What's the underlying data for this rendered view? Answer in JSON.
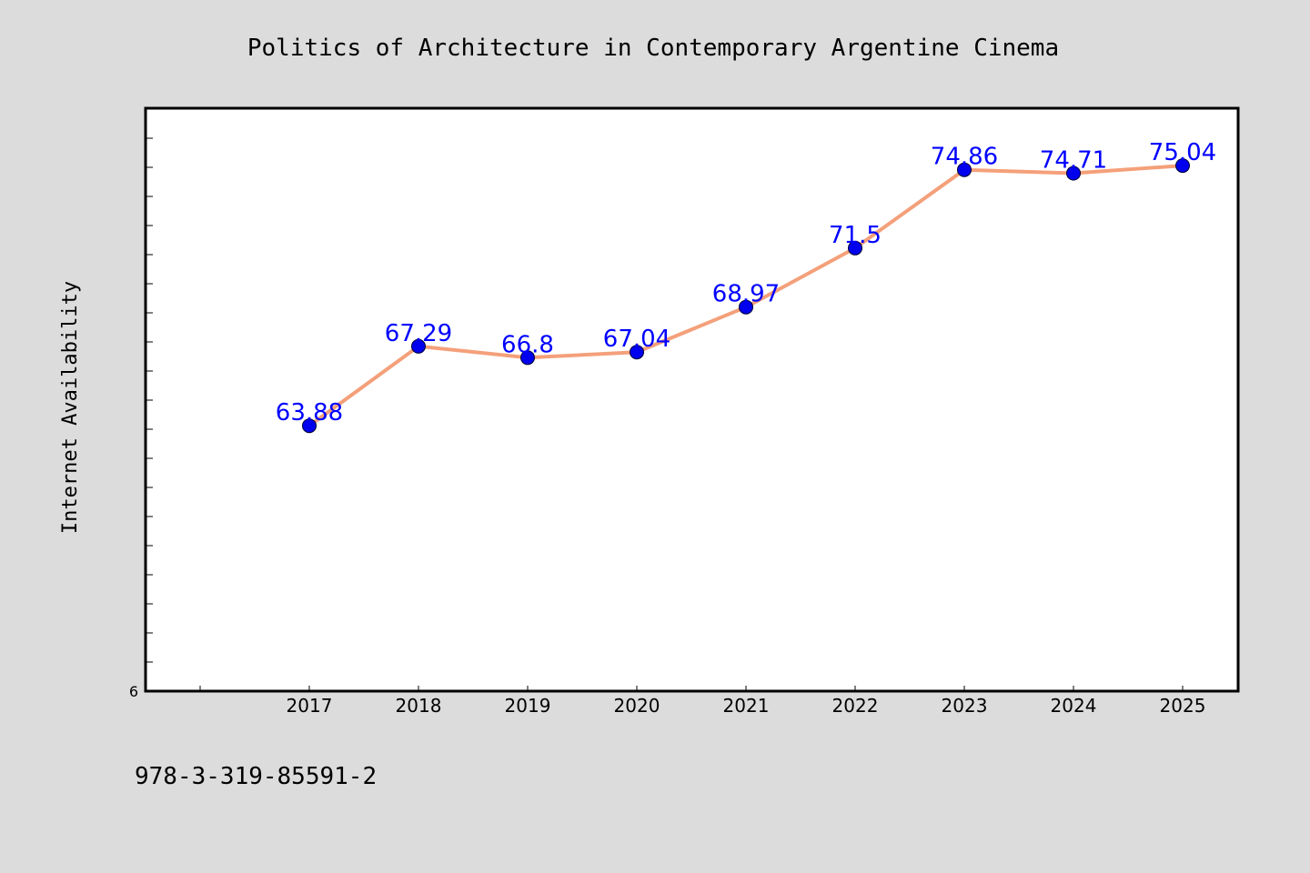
{
  "chart_data": {
    "type": "line",
    "title": "Politics of Architecture in Contemporary Argentine Cinema",
    "xlabel": "",
    "ylabel": "Internet Availability",
    "categories": [
      "2017",
      "2018",
      "2019",
      "2020",
      "2021",
      "2022",
      "2023",
      "2024",
      "2025"
    ],
    "series": [
      {
        "values": [
          63.88,
          67.29,
          66.8,
          67.04,
          68.97,
          71.5,
          74.86,
          74.71,
          75.04
        ],
        "labels": [
          "63.88",
          "67.29",
          "66.8",
          "67.04",
          "68.97",
          "71.5",
          "74.86",
          "74.71",
          "75.04"
        ],
        "line_color": "#f4a07a",
        "marker_color": "#0000ee"
      }
    ],
    "ylim": [
      52.5,
      77.5
    ],
    "y_bottom_label": "6",
    "grid": false,
    "legend": "none"
  },
  "footer_text": "978-3-319-85591-2"
}
